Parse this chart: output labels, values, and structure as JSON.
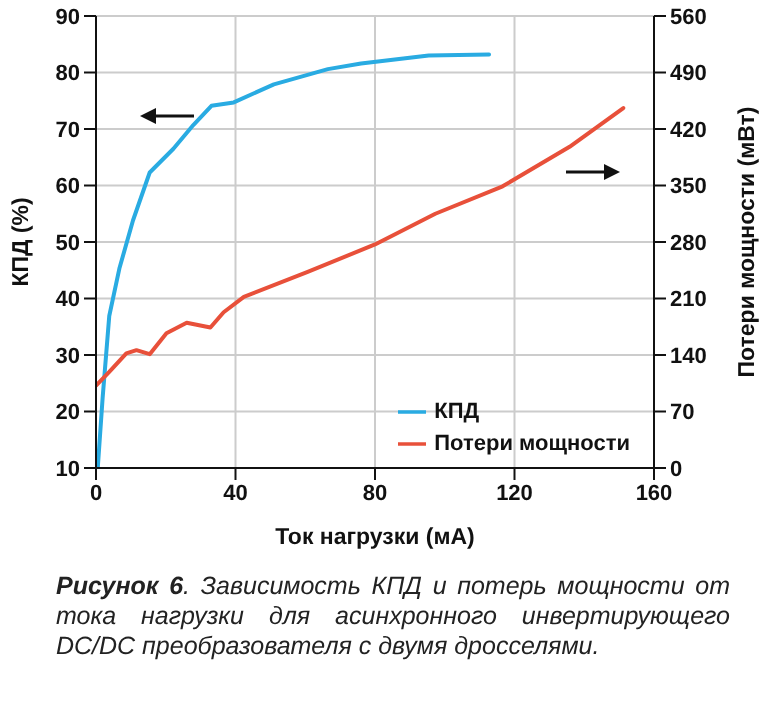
{
  "chart_data": {
    "type": "line",
    "xlabel": "Ток нагрузки (мА)",
    "ylabel": "КПД (%)",
    "y2label": "Потери мощности (мВт)",
    "annotations": [
      "Рисунок 6. Зависимость КПД и потерь мощности от тока нагрузки для асинхронного инвертирующего DC/DC преобразователя с двумя дросселями."
    ],
    "xlim": [
      0,
      160
    ],
    "xticks": [
      0,
      40,
      80,
      120,
      160
    ],
    "ylim": [
      10,
      90
    ],
    "yticks": [
      10,
      20,
      30,
      40,
      50,
      60,
      70,
      80,
      90
    ],
    "y2lim": [
      0,
      560
    ],
    "y2ticks": [
      0,
      70,
      140,
      210,
      280,
      350,
      420,
      490,
      560
    ],
    "grid": true,
    "legend": "bottom right",
    "marker": "none",
    "line_style": "solid",
    "series": [
      {
        "name": "КПД",
        "color": "#29abe2",
        "x": [
          0.5,
          1.9,
          3.8,
          6.7,
          10.6,
          15.4,
          22.2,
          27.9,
          33.1,
          39.5,
          51,
          66.5,
          76,
          95.4,
          112.7
        ],
        "values": [
          10,
          22.4,
          36.9,
          45.3,
          53.8,
          62.3,
          66.5,
          70.7,
          74.1,
          74.7,
          77.9,
          80.6,
          81.6,
          83,
          83.2
        ]
      },
      {
        "name": "Потери мощности",
        "color": "#e8503a",
        "axis": "y2",
        "x": [
          0,
          3.8,
          8.7,
          11.6,
          15.4,
          20.2,
          26,
          32.8,
          36.6,
          42.4,
          60.7,
          80,
          97.3,
          116.6,
          135.8,
          151.2
        ],
        "values": [
          102,
          119,
          142,
          146,
          141,
          167,
          180,
          174,
          193,
          212,
          243,
          277,
          315,
          349,
          398,
          446
        ]
      }
    ]
  }
}
